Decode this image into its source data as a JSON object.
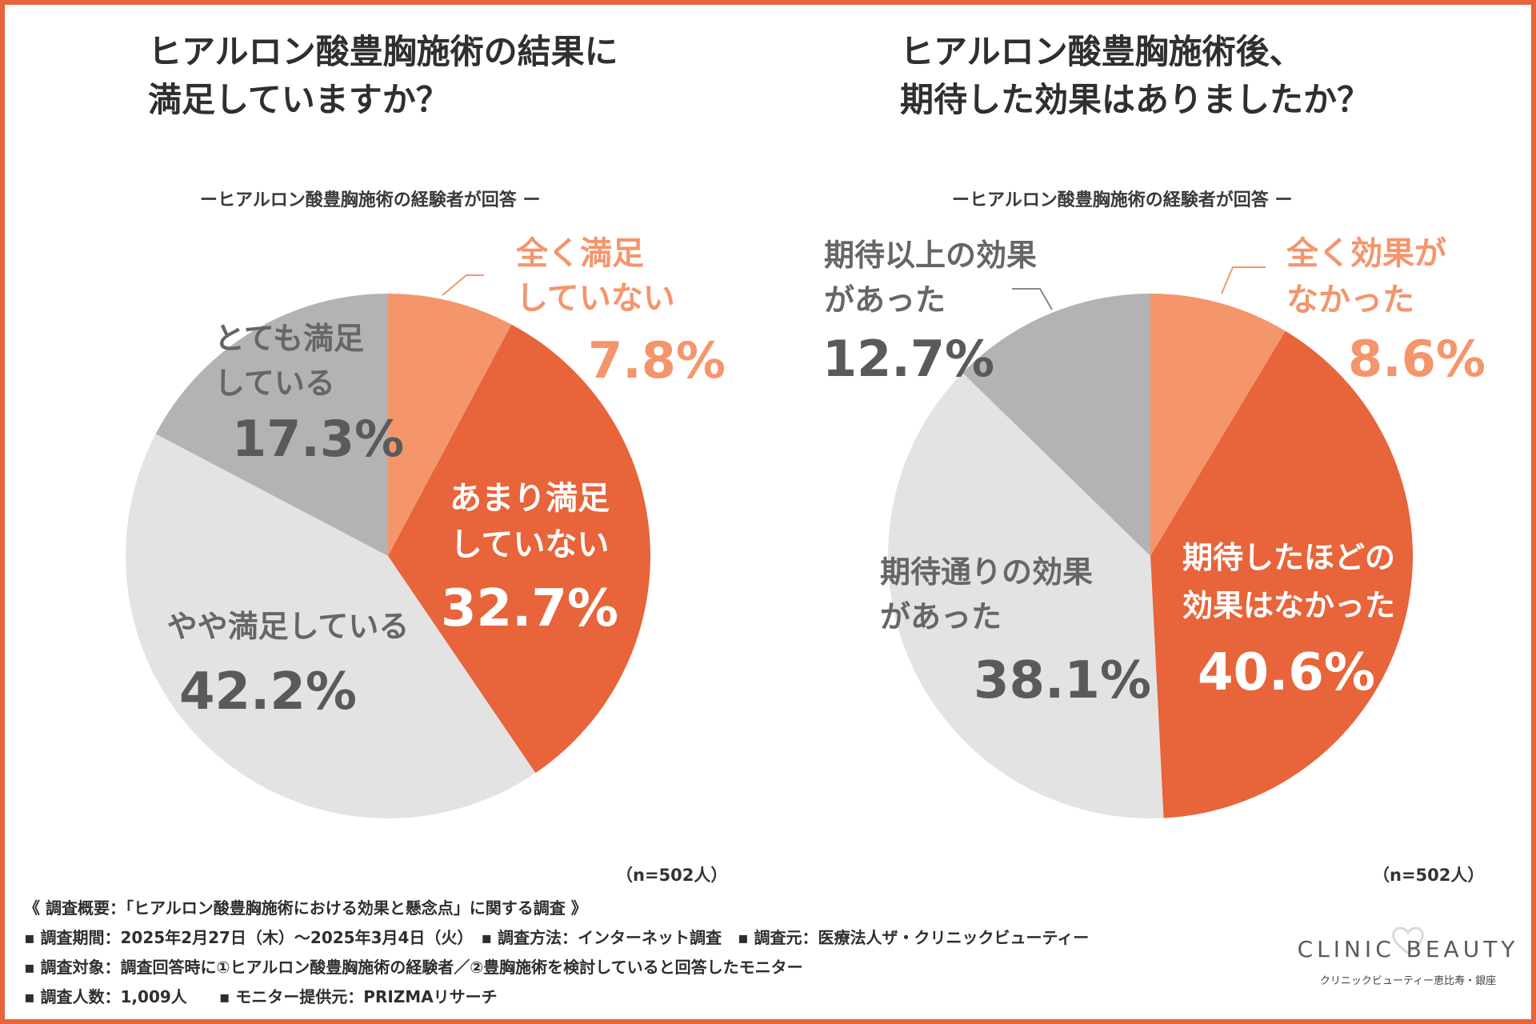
{
  "colors": {
    "border": "#e8643a",
    "light_orange": "#f5956b",
    "dark_orange": "#e8643a",
    "light_gray": "#e3e3e3",
    "mid_gray": "#b3b3b3",
    "text_gray": "#5a5a5a"
  },
  "left": {
    "title_line1": "ヒアルロン酸豊胸施術の結果に",
    "title_line2": "満足していますか？",
    "subtitle": "ーヒアルロン酸豊胸施術の経験者が回答 ー",
    "n_label": "（n=502人）"
  },
  "right": {
    "title_line1": "ヒアルロン酸豊胸施術後、",
    "title_line2": "期待した効果はありましたか？",
    "subtitle": "ーヒアルロン酸豊胸施術の経験者が回答 ー",
    "n_label": "（n=502人）"
  },
  "chart_data": [
    {
      "type": "pie",
      "title": "ヒアルロン酸豊胸施術の結果に満足していますか？",
      "start": "12 o'clock, clockwise",
      "slices": [
        {
          "label_lines": [
            "全く満足",
            "していない"
          ],
          "value": 7.8,
          "value_label": "7.8%",
          "color": "#f5956b"
        },
        {
          "label_lines": [
            "あまり満足",
            "していない"
          ],
          "value": 32.7,
          "value_label": "32.7%",
          "color": "#e8643a"
        },
        {
          "label_lines": [
            "やや満足している"
          ],
          "value": 42.2,
          "value_label": "42.2%",
          "color": "#e3e3e3"
        },
        {
          "label_lines": [
            "とても満足",
            "している"
          ],
          "value": 17.3,
          "value_label": "17.3%",
          "color": "#b3b3b3"
        }
      ]
    },
    {
      "type": "pie",
      "title": "ヒアルロン酸豊胸施術後、期待した効果はありましたか？",
      "start": "12 o'clock, clockwise",
      "slices": [
        {
          "label_lines": [
            "全く効果が",
            "なかった"
          ],
          "value": 8.6,
          "value_label": "8.6%",
          "color": "#f5956b"
        },
        {
          "label_lines": [
            "期待したほどの",
            "効果はなかった"
          ],
          "value": 40.6,
          "value_label": "40.6%",
          "color": "#e8643a"
        },
        {
          "label_lines": [
            "期待通りの効果",
            "があった"
          ],
          "value": 38.1,
          "value_label": "38.1%",
          "color": "#e3e3e3"
        },
        {
          "label_lines": [
            "期待以上の効果",
            "があった"
          ],
          "value": 12.7,
          "value_label": "12.7%",
          "color": "#b3b3b3"
        }
      ]
    }
  ],
  "footer": {
    "line1": "《 調査概要：「ヒアルロン酸豊胸施術における効果と懸念点」に関する調査 》",
    "line2": "▪ 調査期間：2025年2月27日（木）～2025年3月4日（火）　▪ 調査方法：インターネット調査　▪ 調査元：医療法人ザ・クリニックビューティー",
    "line3": "▪ 調査対象：調査回答時に①ヒアルロン酸豊胸施術の経験者／②豊胸施術を検討していると回答したモニター",
    "line4": "▪ 調査人数：1,009人　　▪ モニター提供元：PRIZMAリサーチ"
  },
  "brand": {
    "name": "CLINIC BEAUTY",
    "sub": "クリニックビューティー恵比寿・銀座"
  }
}
